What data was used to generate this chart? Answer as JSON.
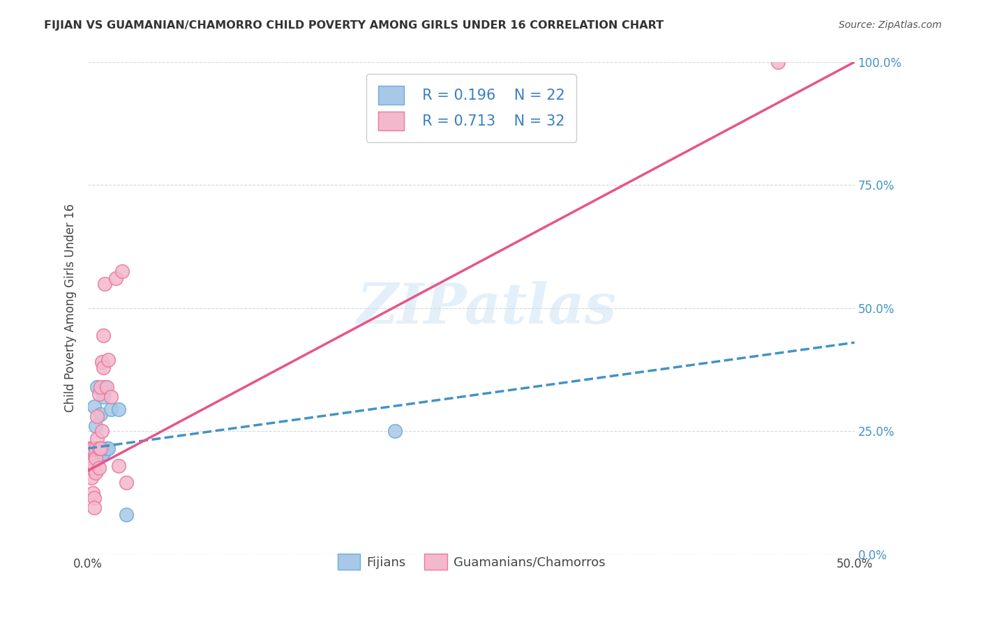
{
  "title": "FIJIAN VS GUAMANIAN/CHAMORRO CHILD POVERTY AMONG GIRLS UNDER 16 CORRELATION CHART",
  "source": "Source: ZipAtlas.com",
  "ylabel": "Child Poverty Among Girls Under 16",
  "xlim": [
    0,
    0.5
  ],
  "ylim": [
    0,
    1.0
  ],
  "xtick_positions": [
    0.0,
    0.5
  ],
  "xticklabels": [
    "0.0%",
    "50.0%"
  ],
  "ytick_positions": [
    0.0,
    0.25,
    0.5,
    0.75,
    1.0
  ],
  "yticklabels_right": [
    "0.0%",
    "25.0%",
    "50.0%",
    "75.0%",
    "100.0%"
  ],
  "fijian_color": "#a8c8e8",
  "fijian_edge_color": "#6baed6",
  "guamanian_color": "#f4b8cc",
  "guamanian_edge_color": "#e87aa0",
  "fijian_line_color": "#4393c3",
  "guamanian_line_color": "#e8538a",
  "right_axis_color": "#4393c3",
  "legend_text_color": "#3a7fc1",
  "fijian_R": 0.196,
  "fijian_N": 22,
  "guamanian_R": 0.713,
  "guamanian_N": 32,
  "watermark_text": "ZIPatlas",
  "fijian_x": [
    0.001,
    0.002,
    0.002,
    0.003,
    0.003,
    0.004,
    0.004,
    0.005,
    0.005,
    0.006,
    0.007,
    0.008,
    0.009,
    0.01,
    0.01,
    0.011,
    0.012,
    0.013,
    0.015,
    0.02,
    0.025,
    0.2
  ],
  "fijian_y": [
    0.215,
    0.185,
    0.205,
    0.215,
    0.195,
    0.215,
    0.3,
    0.215,
    0.26,
    0.34,
    0.21,
    0.285,
    0.205,
    0.205,
    0.32,
    0.34,
    0.215,
    0.215,
    0.295,
    0.295,
    0.08,
    0.25
  ],
  "guamanian_x": [
    0.001,
    0.001,
    0.002,
    0.002,
    0.003,
    0.003,
    0.003,
    0.004,
    0.004,
    0.005,
    0.005,
    0.005,
    0.006,
    0.006,
    0.007,
    0.007,
    0.007,
    0.008,
    0.008,
    0.009,
    0.009,
    0.01,
    0.01,
    0.011,
    0.012,
    0.013,
    0.015,
    0.018,
    0.02,
    0.022,
    0.025,
    0.45
  ],
  "guamanian_y": [
    0.215,
    0.185,
    0.155,
    0.175,
    0.215,
    0.185,
    0.125,
    0.115,
    0.095,
    0.215,
    0.195,
    0.165,
    0.28,
    0.235,
    0.215,
    0.175,
    0.325,
    0.34,
    0.215,
    0.39,
    0.25,
    0.38,
    0.445,
    0.55,
    0.34,
    0.395,
    0.32,
    0.56,
    0.18,
    0.575,
    0.145,
    1.0
  ],
  "fijian_trend_x0": 0.0,
  "fijian_trend_y0": 0.215,
  "fijian_trend_x1": 0.5,
  "fijian_trend_y1": 0.43,
  "guamanian_trend_x0": 0.0,
  "guamanian_trend_y0": 0.17,
  "guamanian_trend_x1": 0.5,
  "guamanian_trend_y1": 1.0,
  "background_color": "#ffffff",
  "grid_color": "#d8d8d8"
}
